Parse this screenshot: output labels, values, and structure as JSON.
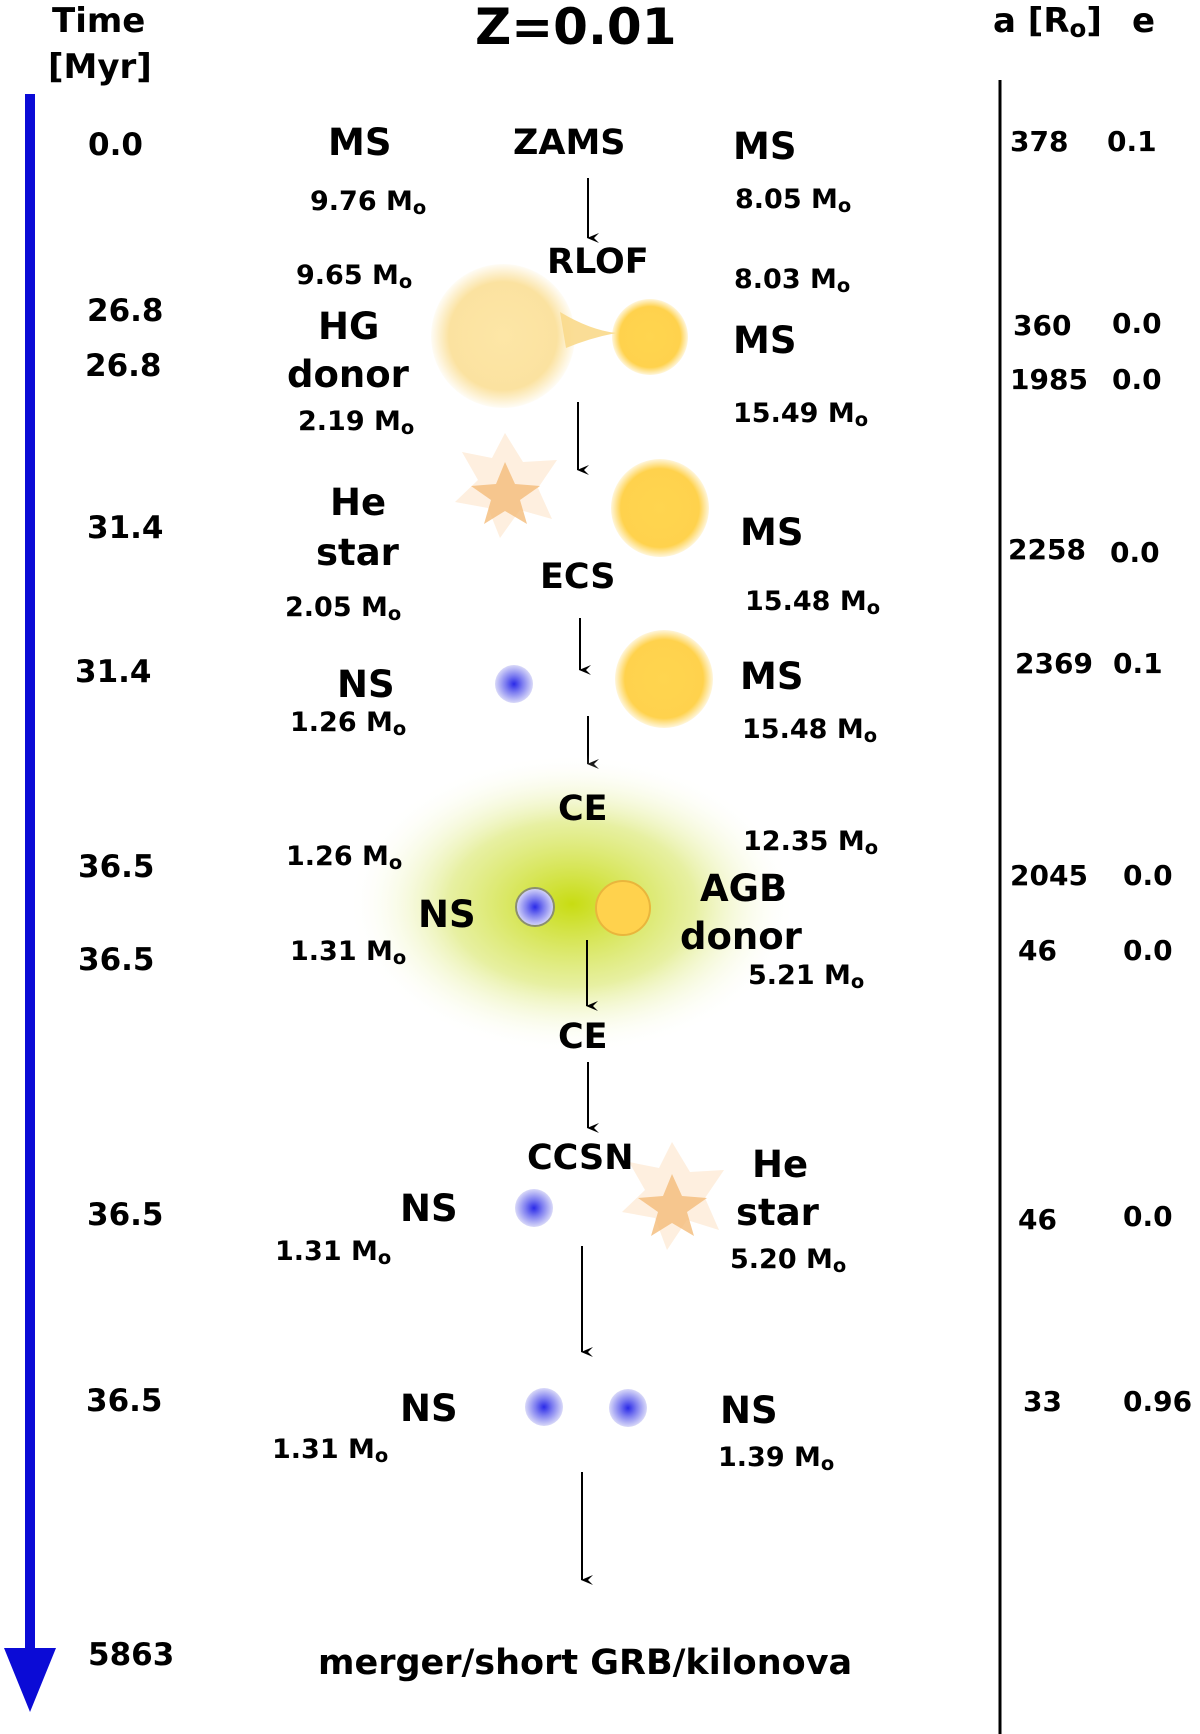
{
  "header": {
    "time_label": "Time",
    "time_unit": "[Myr]",
    "title": "Z=0.01",
    "sep_label": "a [R",
    "sep_sub": "o",
    "sep_close": "]",
    "ecc_label": "e"
  },
  "mass_unit": "M",
  "mass_sub": "o",
  "stages": [
    {
      "time": "0.0",
      "left_type": "MS",
      "left_mass": "9.76",
      "event": "ZAMS",
      "right_type": "MS",
      "right_mass": "8.05",
      "a": "378",
      "e": "0.1"
    },
    {
      "time": "26.8",
      "left_mass": "9.65",
      "event": "RLOF",
      "right_mass": "8.03",
      "a": "360",
      "e": "0.0"
    },
    {
      "time": "26.8",
      "left_type_1": "HG",
      "left_type_2": "donor",
      "left_mass": "2.19",
      "right_type": "MS",
      "right_mass": "15.49",
      "a": "1985",
      "e": "0.0"
    },
    {
      "time": "31.4",
      "left_type_1": "He",
      "left_type_2": "star",
      "left_mass": "2.05",
      "event": "ECS",
      "right_type": "MS",
      "right_mass": "15.48",
      "a": "2258",
      "e": "0.0"
    },
    {
      "time": "31.4",
      "left_type": "NS",
      "left_mass": "1.26",
      "right_type": "MS",
      "right_mass": "15.48",
      "a": "2369",
      "e": "0.1"
    },
    {
      "time": "36.5",
      "left_mass": "1.26",
      "event": "CE",
      "right_mass": "12.35",
      "a": "2045",
      "e": "0.0"
    },
    {
      "time": "36.5",
      "left_type": "NS",
      "left_mass": "1.31",
      "event": "CE",
      "right_type_1": "AGB",
      "right_type_2": "donor",
      "right_mass": "5.21",
      "a": "46",
      "e": "0.0"
    },
    {
      "time": "36.5",
      "left_type": "NS",
      "left_mass": "1.31",
      "event": "CCSN",
      "right_type_1": "He",
      "right_type_2": "star",
      "right_mass": "5.20",
      "a": "46",
      "e": "0.0"
    },
    {
      "time": "36.5",
      "left_type": "NS",
      "left_mass": "1.31",
      "right_type": "NS",
      "right_mass": "1.39",
      "a": "33",
      "e": "0.96"
    },
    {
      "time": "5863",
      "event": "merger/short GRB/kilonova"
    }
  ],
  "colors": {
    "time_arrow": "#0b0bd6",
    "star_ms": "#ffd24d",
    "star_giant": "#fbe2a0",
    "he_star": "#f3b063",
    "neutron_star": "#3a3ae8",
    "common_envelope": "#cde21a",
    "divider": "#000000"
  }
}
